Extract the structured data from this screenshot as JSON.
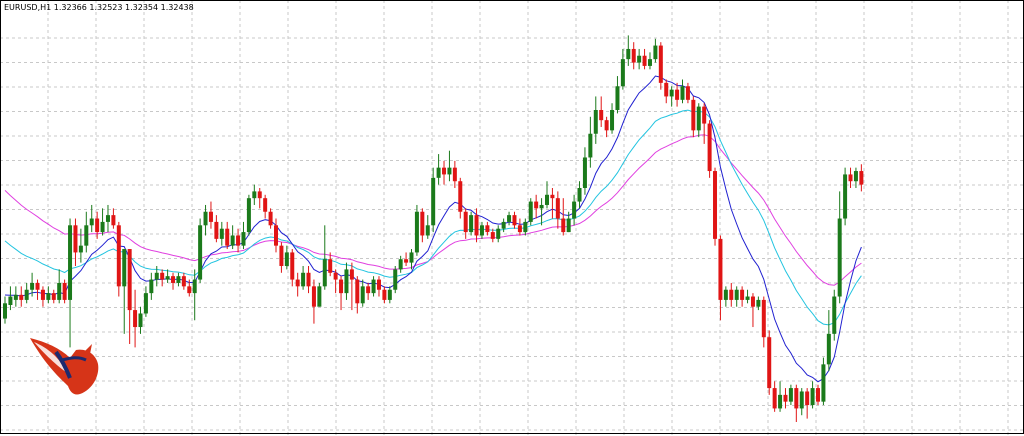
{
  "window": {
    "symbol": "EURUSD,H1",
    "ohlc": "1.32366 1.32523 1.32354 1.32438"
  },
  "logo": {
    "icon": "bull-logo-icon"
  },
  "colors": {
    "background": "#ffffff",
    "grid": "#c8c8c8",
    "frame": "#000000",
    "bull": "#1b7a1b",
    "bear": "#e01515",
    "ma_fast": "#2020d0",
    "ma_mid": "#22c4e0",
    "ma_slow": "#e040e0"
  },
  "chart_data": {
    "type": "candlestick",
    "title": "EURUSD,H1",
    "grid": true,
    "price_range": [
      1.3,
      1.32
    ],
    "candles": [
      {
        "o": 30.5,
        "c": 35,
        "h": 37,
        "l": 29
      },
      {
        "o": 34.5,
        "c": 37,
        "h": 40,
        "l": 33
      },
      {
        "o": 36,
        "c": 37.5,
        "h": 40,
        "l": 34
      },
      {
        "o": 37.5,
        "c": 36,
        "h": 40,
        "l": 34
      },
      {
        "o": 36,
        "c": 39,
        "h": 41,
        "l": 35
      },
      {
        "o": 39,
        "c": 41,
        "h": 44,
        "l": 37
      },
      {
        "o": 41,
        "c": 39,
        "h": 42,
        "l": 36
      },
      {
        "o": 39,
        "c": 36,
        "h": 40,
        "l": 34
      },
      {
        "o": 36,
        "c": 38,
        "h": 40,
        "l": 35
      },
      {
        "o": 38,
        "c": 36,
        "h": 39,
        "l": 35
      },
      {
        "o": 36,
        "c": 41,
        "h": 45,
        "l": 35
      },
      {
        "o": 41,
        "c": 36,
        "h": 42,
        "l": 35
      },
      {
        "o": 36,
        "c": 58,
        "h": 60,
        "l": 22
      },
      {
        "o": 58,
        "c": 50,
        "h": 60,
        "l": 46
      },
      {
        "o": 50,
        "c": 52,
        "h": 57,
        "l": 47
      },
      {
        "o": 52,
        "c": 58,
        "h": 62,
        "l": 50
      },
      {
        "o": 58,
        "c": 60,
        "h": 64,
        "l": 56
      },
      {
        "o": 60,
        "c": 56,
        "h": 62,
        "l": 54
      },
      {
        "o": 56,
        "c": 59,
        "h": 63,
        "l": 55
      },
      {
        "o": 59,
        "c": 61,
        "h": 64,
        "l": 56
      },
      {
        "o": 61,
        "c": 58,
        "h": 63,
        "l": 57
      },
      {
        "o": 58,
        "c": 40,
        "h": 59,
        "l": 37
      },
      {
        "o": 40,
        "c": 51,
        "h": 51,
        "l": 26
      },
      {
        "o": 51,
        "c": 33,
        "h": 51,
        "l": 23
      },
      {
        "o": 33,
        "c": 28,
        "h": 39,
        "l": 22
      },
      {
        "o": 28,
        "c": 32,
        "h": 34,
        "l": 26
      },
      {
        "o": 32,
        "c": 38,
        "h": 40,
        "l": 31
      },
      {
        "o": 38,
        "c": 42,
        "h": 44,
        "l": 36
      },
      {
        "o": 42,
        "c": 44,
        "h": 46,
        "l": 40
      },
      {
        "o": 44,
        "c": 42,
        "h": 45,
        "l": 40
      },
      {
        "o": 42,
        "c": 43,
        "h": 45,
        "l": 41
      },
      {
        "o": 43,
        "c": 41,
        "h": 44,
        "l": 39
      },
      {
        "o": 41,
        "c": 43,
        "h": 44,
        "l": 40
      },
      {
        "o": 43,
        "c": 40,
        "h": 44,
        "l": 39
      },
      {
        "o": 40,
        "c": 38,
        "h": 42,
        "l": 37
      },
      {
        "o": 38,
        "c": 42,
        "h": 45,
        "l": 30
      },
      {
        "o": 42,
        "c": 58,
        "h": 60,
        "l": 41
      },
      {
        "o": 58,
        "c": 62,
        "h": 64,
        "l": 55
      },
      {
        "o": 62,
        "c": 59,
        "h": 65,
        "l": 57
      },
      {
        "o": 59,
        "c": 54,
        "h": 61,
        "l": 53
      },
      {
        "o": 54,
        "c": 57,
        "h": 59,
        "l": 52
      },
      {
        "o": 57,
        "c": 52,
        "h": 59,
        "l": 51
      },
      {
        "o": 52,
        "c": 55,
        "h": 58,
        "l": 51
      },
      {
        "o": 55,
        "c": 52,
        "h": 57,
        "l": 50
      },
      {
        "o": 52,
        "c": 56,
        "h": 59,
        "l": 51
      },
      {
        "o": 56,
        "c": 66,
        "h": 67,
        "l": 55
      },
      {
        "o": 66,
        "c": 68,
        "h": 70,
        "l": 64
      },
      {
        "o": 68,
        "c": 66,
        "h": 69,
        "l": 63
      },
      {
        "o": 66,
        "c": 62,
        "h": 67,
        "l": 60
      },
      {
        "o": 62,
        "c": 58,
        "h": 63,
        "l": 57
      },
      {
        "o": 58,
        "c": 52,
        "h": 60,
        "l": 50
      },
      {
        "o": 52,
        "c": 46,
        "h": 53,
        "l": 44
      },
      {
        "o": 46,
        "c": 50,
        "h": 52,
        "l": 45
      },
      {
        "o": 50,
        "c": 42,
        "h": 51,
        "l": 40
      },
      {
        "o": 42,
        "c": 40,
        "h": 44,
        "l": 37
      },
      {
        "o": 40,
        "c": 44,
        "h": 46,
        "l": 39
      },
      {
        "o": 44,
        "c": 40,
        "h": 46,
        "l": 38
      },
      {
        "o": 40,
        "c": 34,
        "h": 42,
        "l": 29
      },
      {
        "o": 34,
        "c": 40,
        "h": 41,
        "l": 34
      },
      {
        "o": 40,
        "c": 48,
        "h": 58,
        "l": 39
      },
      {
        "o": 48,
        "c": 44,
        "h": 50,
        "l": 43
      },
      {
        "o": 44,
        "c": 42,
        "h": 45,
        "l": 38
      },
      {
        "o": 42,
        "c": 38,
        "h": 43,
        "l": 33
      },
      {
        "o": 38,
        "c": 45,
        "h": 47,
        "l": 36
      },
      {
        "o": 45,
        "c": 42,
        "h": 47,
        "l": 33
      },
      {
        "o": 42,
        "c": 35,
        "h": 43,
        "l": 32
      },
      {
        "o": 35,
        "c": 40,
        "h": 42,
        "l": 34
      },
      {
        "o": 40,
        "c": 38,
        "h": 41,
        "l": 36
      },
      {
        "o": 38,
        "c": 42,
        "h": 43,
        "l": 37
      },
      {
        "o": 42,
        "c": 39,
        "h": 43,
        "l": 37
      },
      {
        "o": 39,
        "c": 36,
        "h": 40,
        "l": 35
      },
      {
        "o": 36,
        "c": 39,
        "h": 40,
        "l": 35
      },
      {
        "o": 39,
        "c": 45,
        "h": 46,
        "l": 38
      },
      {
        "o": 45,
        "c": 48,
        "h": 49,
        "l": 44
      },
      {
        "o": 48,
        "c": 47,
        "h": 50,
        "l": 46
      },
      {
        "o": 47,
        "c": 50,
        "h": 51,
        "l": 45
      },
      {
        "o": 50,
        "c": 62,
        "h": 64,
        "l": 49
      },
      {
        "o": 62,
        "c": 55,
        "h": 63,
        "l": 53
      },
      {
        "o": 55,
        "c": 58,
        "h": 61,
        "l": 54
      },
      {
        "o": 58,
        "c": 72,
        "h": 75,
        "l": 56
      },
      {
        "o": 72,
        "c": 75,
        "h": 79,
        "l": 70
      },
      {
        "o": 75,
        "c": 73,
        "h": 77,
        "l": 70
      },
      {
        "o": 73,
        "c": 75,
        "h": 80,
        "l": 71
      },
      {
        "o": 75,
        "c": 71,
        "h": 77,
        "l": 69
      },
      {
        "o": 71,
        "c": 62,
        "h": 72,
        "l": 60
      },
      {
        "o": 62,
        "c": 56,
        "h": 63,
        "l": 54
      },
      {
        "o": 56,
        "c": 61,
        "h": 62,
        "l": 55
      },
      {
        "o": 61,
        "c": 55,
        "h": 63,
        "l": 53
      },
      {
        "o": 55,
        "c": 58,
        "h": 59,
        "l": 54
      },
      {
        "o": 58,
        "c": 56,
        "h": 59,
        "l": 55
      },
      {
        "o": 56,
        "c": 54,
        "h": 57,
        "l": 53
      },
      {
        "o": 54,
        "c": 57,
        "h": 58,
        "l": 53
      },
      {
        "o": 57,
        "c": 59,
        "h": 60,
        "l": 56
      },
      {
        "o": 59,
        "c": 61,
        "h": 62,
        "l": 58
      },
      {
        "o": 61,
        "c": 58,
        "h": 62,
        "l": 57
      },
      {
        "o": 58,
        "c": 56,
        "h": 60,
        "l": 55
      },
      {
        "o": 56,
        "c": 59,
        "h": 60,
        "l": 55
      },
      {
        "o": 59,
        "c": 65,
        "h": 66,
        "l": 58
      },
      {
        "o": 65,
        "c": 63,
        "h": 67,
        "l": 60
      },
      {
        "o": 63,
        "c": 64,
        "h": 66,
        "l": 58
      },
      {
        "o": 64,
        "c": 67,
        "h": 71,
        "l": 63
      },
      {
        "o": 67,
        "c": 66,
        "h": 69,
        "l": 60
      },
      {
        "o": 66,
        "c": 60,
        "h": 68,
        "l": 57
      },
      {
        "o": 60,
        "c": 56,
        "h": 66,
        "l": 55
      },
      {
        "o": 56,
        "c": 60,
        "h": 62,
        "l": 56
      },
      {
        "o": 60,
        "c": 65,
        "h": 67,
        "l": 58
      },
      {
        "o": 65,
        "c": 69,
        "h": 71,
        "l": 63
      },
      {
        "o": 69,
        "c": 78,
        "h": 81,
        "l": 67
      },
      {
        "o": 78,
        "c": 85,
        "h": 90,
        "l": 75
      },
      {
        "o": 85,
        "c": 92,
        "h": 96,
        "l": 82
      },
      {
        "o": 92,
        "c": 89,
        "h": 96,
        "l": 87
      },
      {
        "o": 89,
        "c": 86,
        "h": 90,
        "l": 84
      },
      {
        "o": 86,
        "c": 92,
        "h": 94,
        "l": 85
      },
      {
        "o": 92,
        "c": 99,
        "h": 102,
        "l": 91
      },
      {
        "o": 99,
        "c": 107,
        "h": 110,
        "l": 98
      },
      {
        "o": 107,
        "c": 110,
        "h": 114,
        "l": 105
      },
      {
        "o": 110,
        "c": 106,
        "h": 112,
        "l": 104
      },
      {
        "o": 106,
        "c": 108,
        "h": 110,
        "l": 104
      },
      {
        "o": 108,
        "c": 105,
        "h": 110,
        "l": 104
      },
      {
        "o": 105,
        "c": 107,
        "h": 109,
        "l": 104
      },
      {
        "o": 107,
        "c": 111,
        "h": 113,
        "l": 106
      },
      {
        "o": 111,
        "c": 100,
        "h": 112,
        "l": 98
      },
      {
        "o": 100,
        "c": 96,
        "h": 101,
        "l": 94
      },
      {
        "o": 96,
        "c": 98,
        "h": 99,
        "l": 93
      },
      {
        "o": 98,
        "c": 95,
        "h": 100,
        "l": 93
      },
      {
        "o": 95,
        "c": 99,
        "h": 101,
        "l": 94
      },
      {
        "o": 99,
        "c": 95,
        "h": 100,
        "l": 94
      },
      {
        "o": 95,
        "c": 86,
        "h": 96,
        "l": 84
      },
      {
        "o": 86,
        "c": 93,
        "h": 94,
        "l": 84
      },
      {
        "o": 93,
        "c": 88,
        "h": 94,
        "l": 82
      },
      {
        "o": 88,
        "c": 74,
        "h": 89,
        "l": 72
      },
      {
        "o": 74,
        "c": 54,
        "h": 75,
        "l": 52
      },
      {
        "o": 54,
        "c": 36,
        "h": 55,
        "l": 30
      },
      {
        "o": 36,
        "c": 39,
        "h": 40,
        "l": 34
      },
      {
        "o": 39,
        "c": 36,
        "h": 41,
        "l": 34
      },
      {
        "o": 36,
        "c": 39,
        "h": 40,
        "l": 34
      },
      {
        "o": 39,
        "c": 36,
        "h": 40,
        "l": 34
      },
      {
        "o": 36,
        "c": 37,
        "h": 39,
        "l": 35
      },
      {
        "o": 37,
        "c": 34,
        "h": 38,
        "l": 28
      },
      {
        "o": 34,
        "c": 36,
        "h": 37,
        "l": 33
      },
      {
        "o": 36,
        "c": 25,
        "h": 37,
        "l": 22
      },
      {
        "o": 25,
        "c": 10,
        "h": 27,
        "l": 8
      },
      {
        "o": 10,
        "c": 4,
        "h": 12,
        "l": 3
      },
      {
        "o": 4,
        "c": 8,
        "h": 12,
        "l": 3
      },
      {
        "o": 8,
        "c": 6,
        "h": 10,
        "l": 4
      },
      {
        "o": 6,
        "c": 10,
        "h": 11,
        "l": 5
      },
      {
        "o": 10,
        "c": 4,
        "h": 11,
        "l": 0
      },
      {
        "o": 4,
        "c": 9,
        "h": 10,
        "l": 2
      },
      {
        "o": 9,
        "c": 5,
        "h": 10,
        "l": 1
      },
      {
        "o": 5,
        "c": 10,
        "h": 12,
        "l": 4
      },
      {
        "o": 10,
        "c": 6,
        "h": 11,
        "l": 5
      },
      {
        "o": 6,
        "c": 17,
        "h": 19,
        "l": 5
      },
      {
        "o": 17,
        "c": 26,
        "h": 33,
        "l": 15
      },
      {
        "o": 26,
        "c": 37,
        "h": 39,
        "l": 24
      },
      {
        "o": 37,
        "c": 60,
        "h": 68,
        "l": 35
      },
      {
        "o": 60,
        "c": 73,
        "h": 75,
        "l": 58
      },
      {
        "o": 73,
        "c": 71,
        "h": 75,
        "l": 69
      },
      {
        "o": 71,
        "c": 74,
        "h": 75,
        "l": 69
      },
      {
        "o": 74,
        "c": 70,
        "h": 76,
        "l": 68
      }
    ]
  }
}
